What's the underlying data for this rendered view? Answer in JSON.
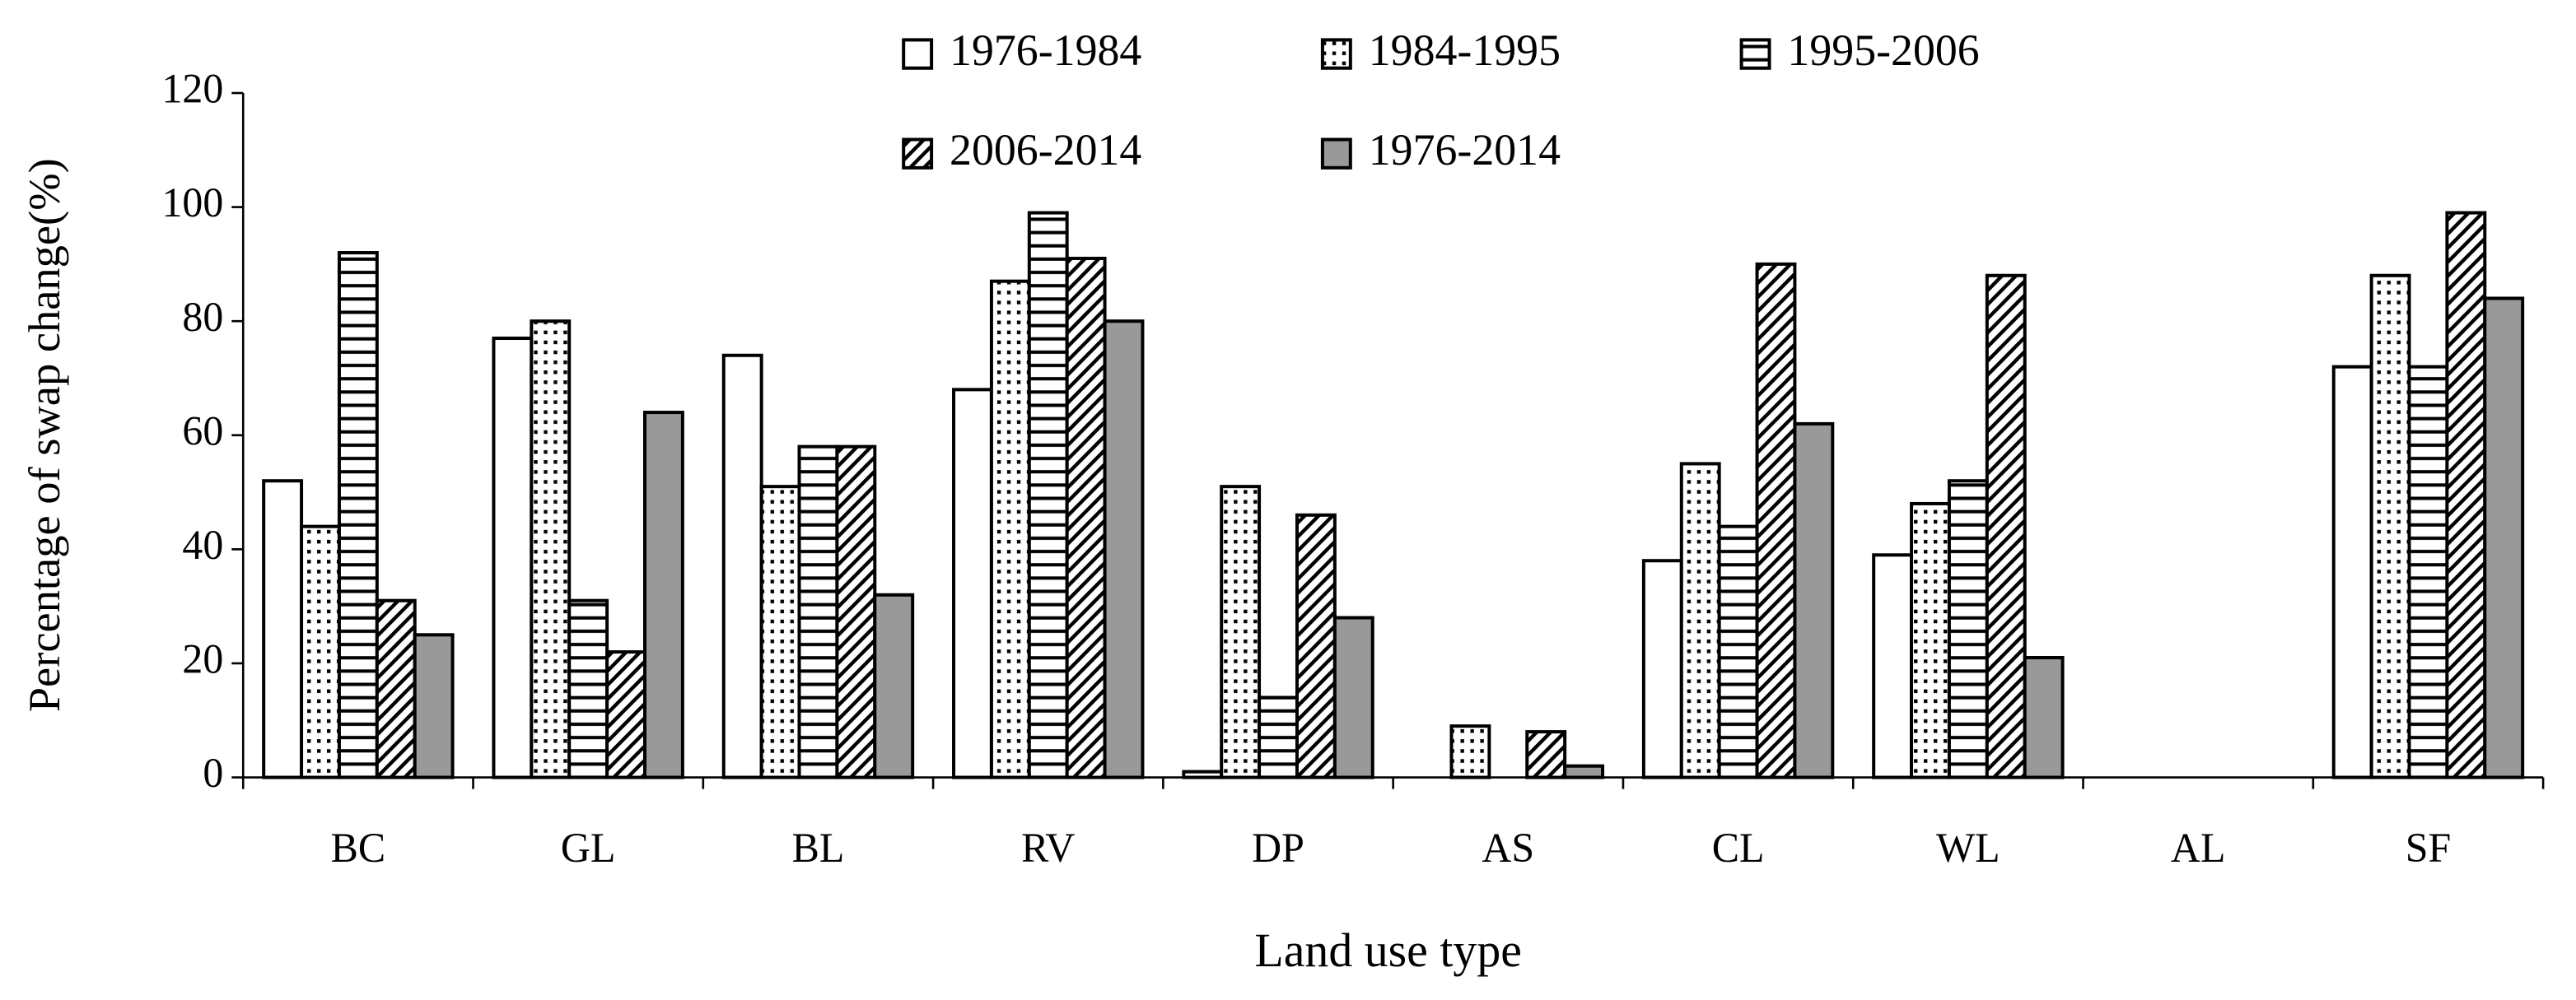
{
  "chart_data": {
    "type": "bar",
    "x_label": "Land use type",
    "y_label": "Percentage of swap change(%)",
    "categories": [
      "BC",
      "GL",
      "BL",
      "RV",
      "DP",
      "AS",
      "CL",
      "WL",
      "AL",
      "SF"
    ],
    "series": [
      {
        "name": "1976-1984",
        "color": "#ffffff",
        "pattern": "solid",
        "values": [
          52,
          77,
          74,
          68,
          1,
          0,
          38,
          39,
          0,
          72
        ]
      },
      {
        "name": "1984-1995",
        "color": "#ffffff",
        "pattern": "dots",
        "values": [
          44,
          80,
          51,
          87,
          51,
          9,
          55,
          48,
          0,
          88
        ]
      },
      {
        "name": "1995-2006",
        "color": "#ffffff",
        "pattern": "hlines",
        "values": [
          92,
          31,
          58,
          99,
          14,
          0,
          44,
          52,
          0,
          72
        ]
      },
      {
        "name": "2006-2014",
        "color": "#ffffff",
        "pattern": "diagonal",
        "values": [
          31,
          22,
          58,
          91,
          46,
          8,
          90,
          88,
          0,
          99
        ]
      },
      {
        "name": "1976-2014",
        "color": "#999999",
        "pattern": "solid",
        "values": [
          25,
          64,
          32,
          80,
          28,
          2,
          62,
          21,
          0,
          84
        ]
      }
    ],
    "ylim": [
      0,
      120
    ],
    "yticks": [
      0,
      20,
      40,
      60,
      80,
      100,
      120
    ],
    "grid": false,
    "legend": "top"
  }
}
